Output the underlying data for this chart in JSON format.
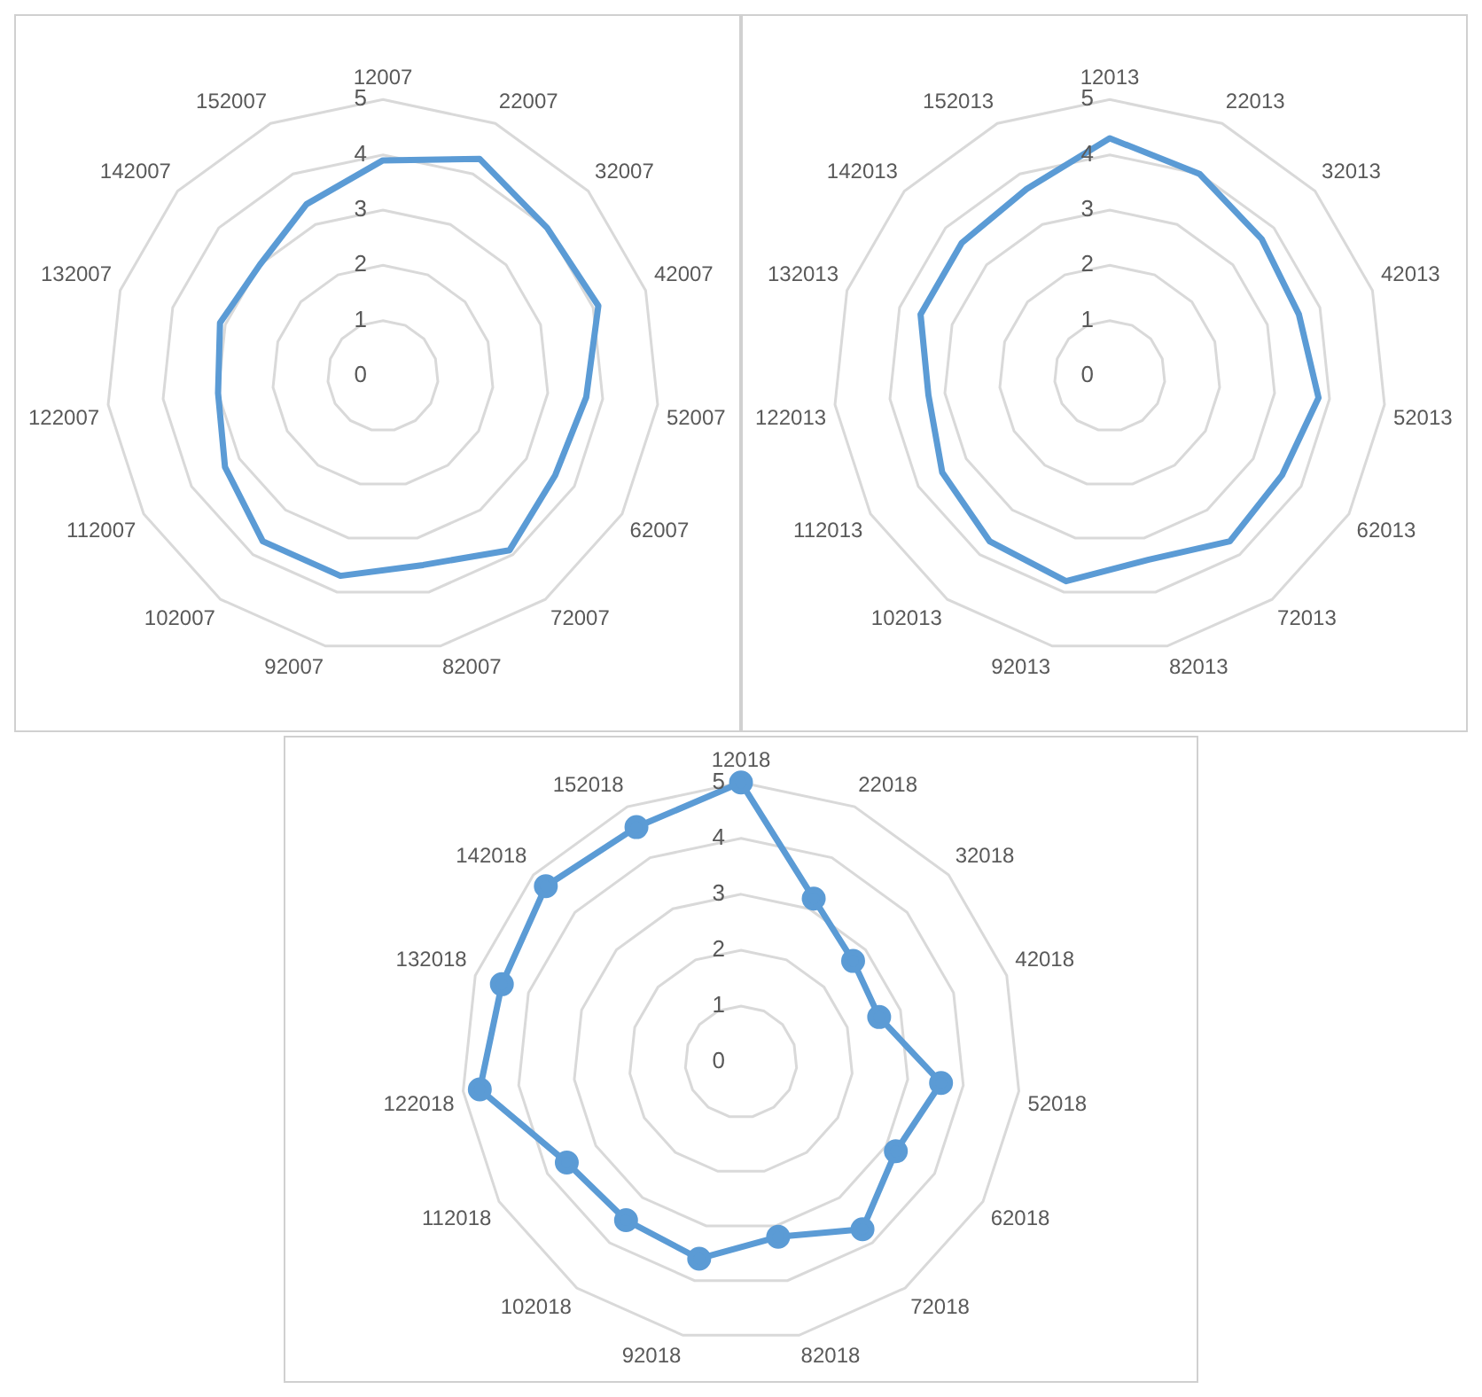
{
  "chart_data": [
    {
      "type": "radar",
      "categories": [
        "12007",
        "22007",
        "32007",
        "42007",
        "52007",
        "62007",
        "72007",
        "82007",
        "92007",
        "102007",
        "112007",
        "122007",
        "132007",
        "142007",
        "152007"
      ],
      "series": [
        {
          "color": "#5b9bd5",
          "values": [
            3.9,
            4.3,
            4.0,
            4.1,
            3.7,
            3.6,
            3.9,
            3.5,
            3.7,
            3.7,
            3.3,
            3.0,
            3.1,
            3.0,
            3.4
          ]
        }
      ],
      "ylim": [
        0,
        5
      ],
      "yticks": [
        0,
        1,
        2,
        3,
        4,
        5
      ],
      "grid": true,
      "marker": "none",
      "legend": false
    },
    {
      "type": "radar",
      "categories": [
        "12013",
        "22013",
        "32013",
        "42013",
        "52013",
        "62013",
        "72013",
        "82013",
        "92013",
        "102013",
        "112013",
        "122013",
        "132013",
        "142013",
        "152013"
      ],
      "series": [
        {
          "color": "#5b9bd5",
          "values": [
            4.3,
            4.0,
            3.7,
            3.6,
            3.8,
            3.6,
            3.7,
            3.4,
            3.8,
            3.7,
            3.5,
            3.3,
            3.6,
            3.6,
            3.7
          ]
        }
      ],
      "ylim": [
        0,
        5
      ],
      "yticks": [
        0,
        1,
        2,
        3,
        4,
        5
      ],
      "grid": true,
      "marker": "none",
      "legend": false
    },
    {
      "type": "radar",
      "categories": [
        "12018",
        "22018",
        "32018",
        "42018",
        "52018",
        "62018",
        "72018",
        "82018",
        "92018",
        "102018",
        "112018",
        "122018",
        "132018",
        "142018",
        "152018"
      ],
      "series": [
        {
          "color": "#5b9bd5",
          "values": [
            5.0,
            3.2,
            2.7,
            2.6,
            3.6,
            3.2,
            3.7,
            3.2,
            3.6,
            3.5,
            3.6,
            4.7,
            4.5,
            4.7,
            4.6
          ]
        }
      ],
      "ylim": [
        0,
        5
      ],
      "yticks": [
        0,
        1,
        2,
        3,
        4,
        5
      ],
      "grid": true,
      "marker": "circle",
      "legend": false
    }
  ]
}
